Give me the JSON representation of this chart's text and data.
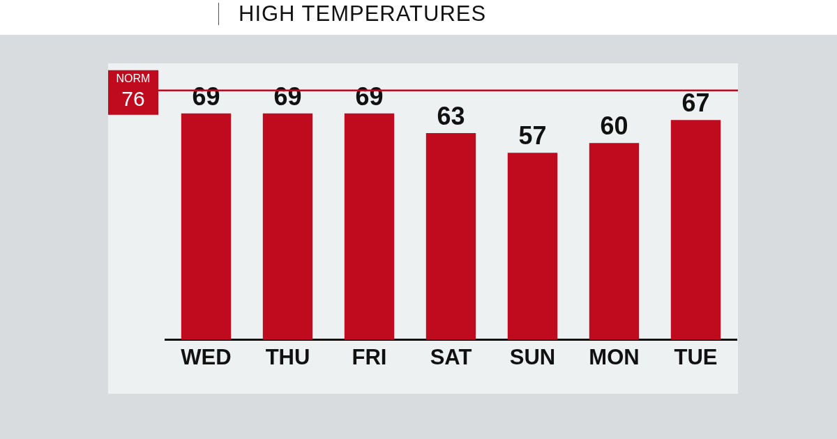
{
  "chart_data": {
    "type": "bar",
    "title": "HIGH TEMPERATURES",
    "categories": [
      "WED",
      "THU",
      "FRI",
      "SAT",
      "SUN",
      "MON",
      "TUE"
    ],
    "values": [
      69,
      69,
      69,
      63,
      57,
      60,
      67
    ],
    "color": "#c00a1e",
    "tick_labels": "x",
    "grid": false,
    "legend": false,
    "data_labels": true,
    "ref_lines": [
      {
        "axis": "y",
        "value": 76,
        "label": "NORM 76",
        "color": "#c00a1e"
      }
    ]
  }
}
